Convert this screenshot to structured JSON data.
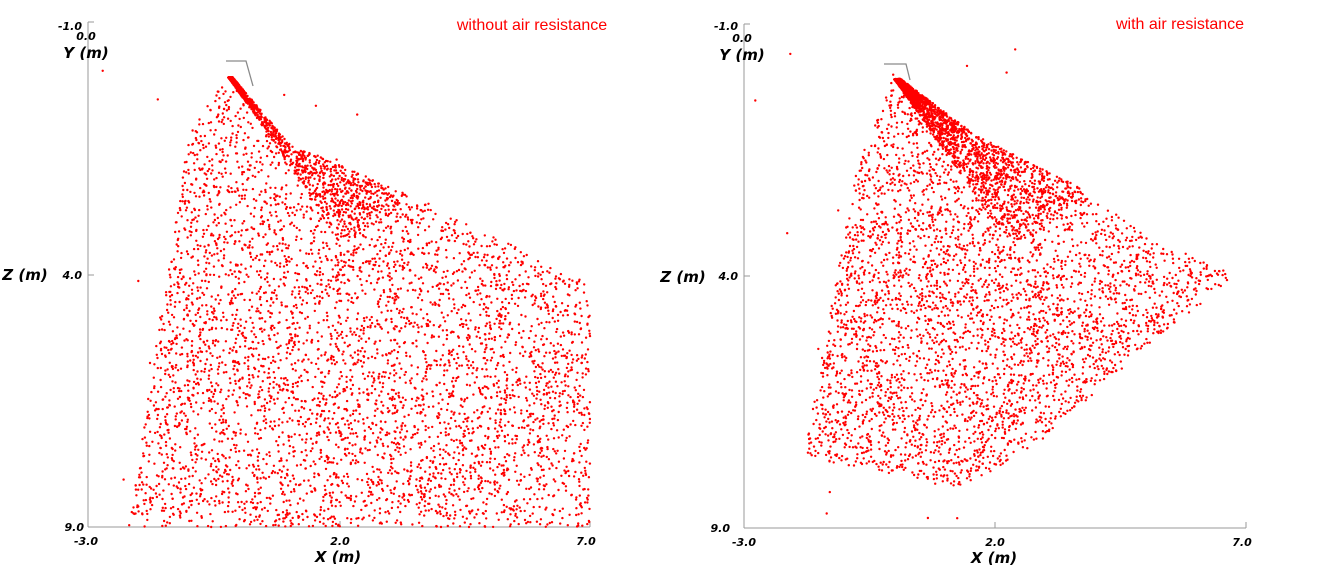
{
  "chart_data": [
    {
      "type": "scatter",
      "title": "without air resistance",
      "xlabel": "X (m)",
      "ylabel": "Z (m)",
      "zlabel": "Y (m)",
      "xlim": [
        -3.0,
        7.0
      ],
      "zlim": [
        -1.0,
        9.0
      ],
      "x_ticks": [
        "-3.0",
        "2.0",
        "7.0"
      ],
      "z_ticks": [
        "-1.0",
        "4.0",
        "9.0"
      ],
      "y_tick_label": "0.0",
      "color": "#ff0000",
      "spray_origin": [
        -0.2,
        0.0
      ],
      "envelope": [
        {
          "x": -0.2,
          "z": 0.0
        },
        {
          "x": 1.0,
          "z": 1.4
        },
        {
          "x": 3.8,
          "z": 2.6
        },
        {
          "x": 7.0,
          "z": 4.2
        },
        {
          "x": 7.0,
          "z": 9.0
        },
        {
          "x": -2.2,
          "z": 9.0
        },
        {
          "x": -1.0,
          "z": 1.2
        }
      ],
      "approx_point_count": 6500
    },
    {
      "type": "scatter",
      "title": "with air resistance",
      "xlabel": "X (m)",
      "ylabel": "Z (m)",
      "zlabel": "Y (m)",
      "xlim": [
        -3.0,
        7.0
      ],
      "zlim": [
        -1.0,
        9.0
      ],
      "x_ticks": [
        "-3.0",
        "2.0",
        "7.0"
      ],
      "z_ticks": [
        "-1.0",
        "4.0",
        "9.0"
      ],
      "y_tick_label": "0.0",
      "color": "#ff0000",
      "spray_origin": [
        0.0,
        0.0
      ],
      "envelope": [
        {
          "x": 0.0,
          "z": 0.0
        },
        {
          "x": 1.6,
          "z": 1.2
        },
        {
          "x": 3.6,
          "z": 2.2
        },
        {
          "x": 5.0,
          "z": 3.2
        },
        {
          "x": 6.8,
          "z": 4.0
        },
        {
          "x": 4.8,
          "z": 5.6
        },
        {
          "x": 3.0,
          "z": 7.2
        },
        {
          "x": 1.4,
          "z": 8.2
        },
        {
          "x": -1.8,
          "z": 7.6
        },
        {
          "x": -0.8,
          "z": 2.0
        }
      ],
      "approx_point_count": 6500
    }
  ]
}
